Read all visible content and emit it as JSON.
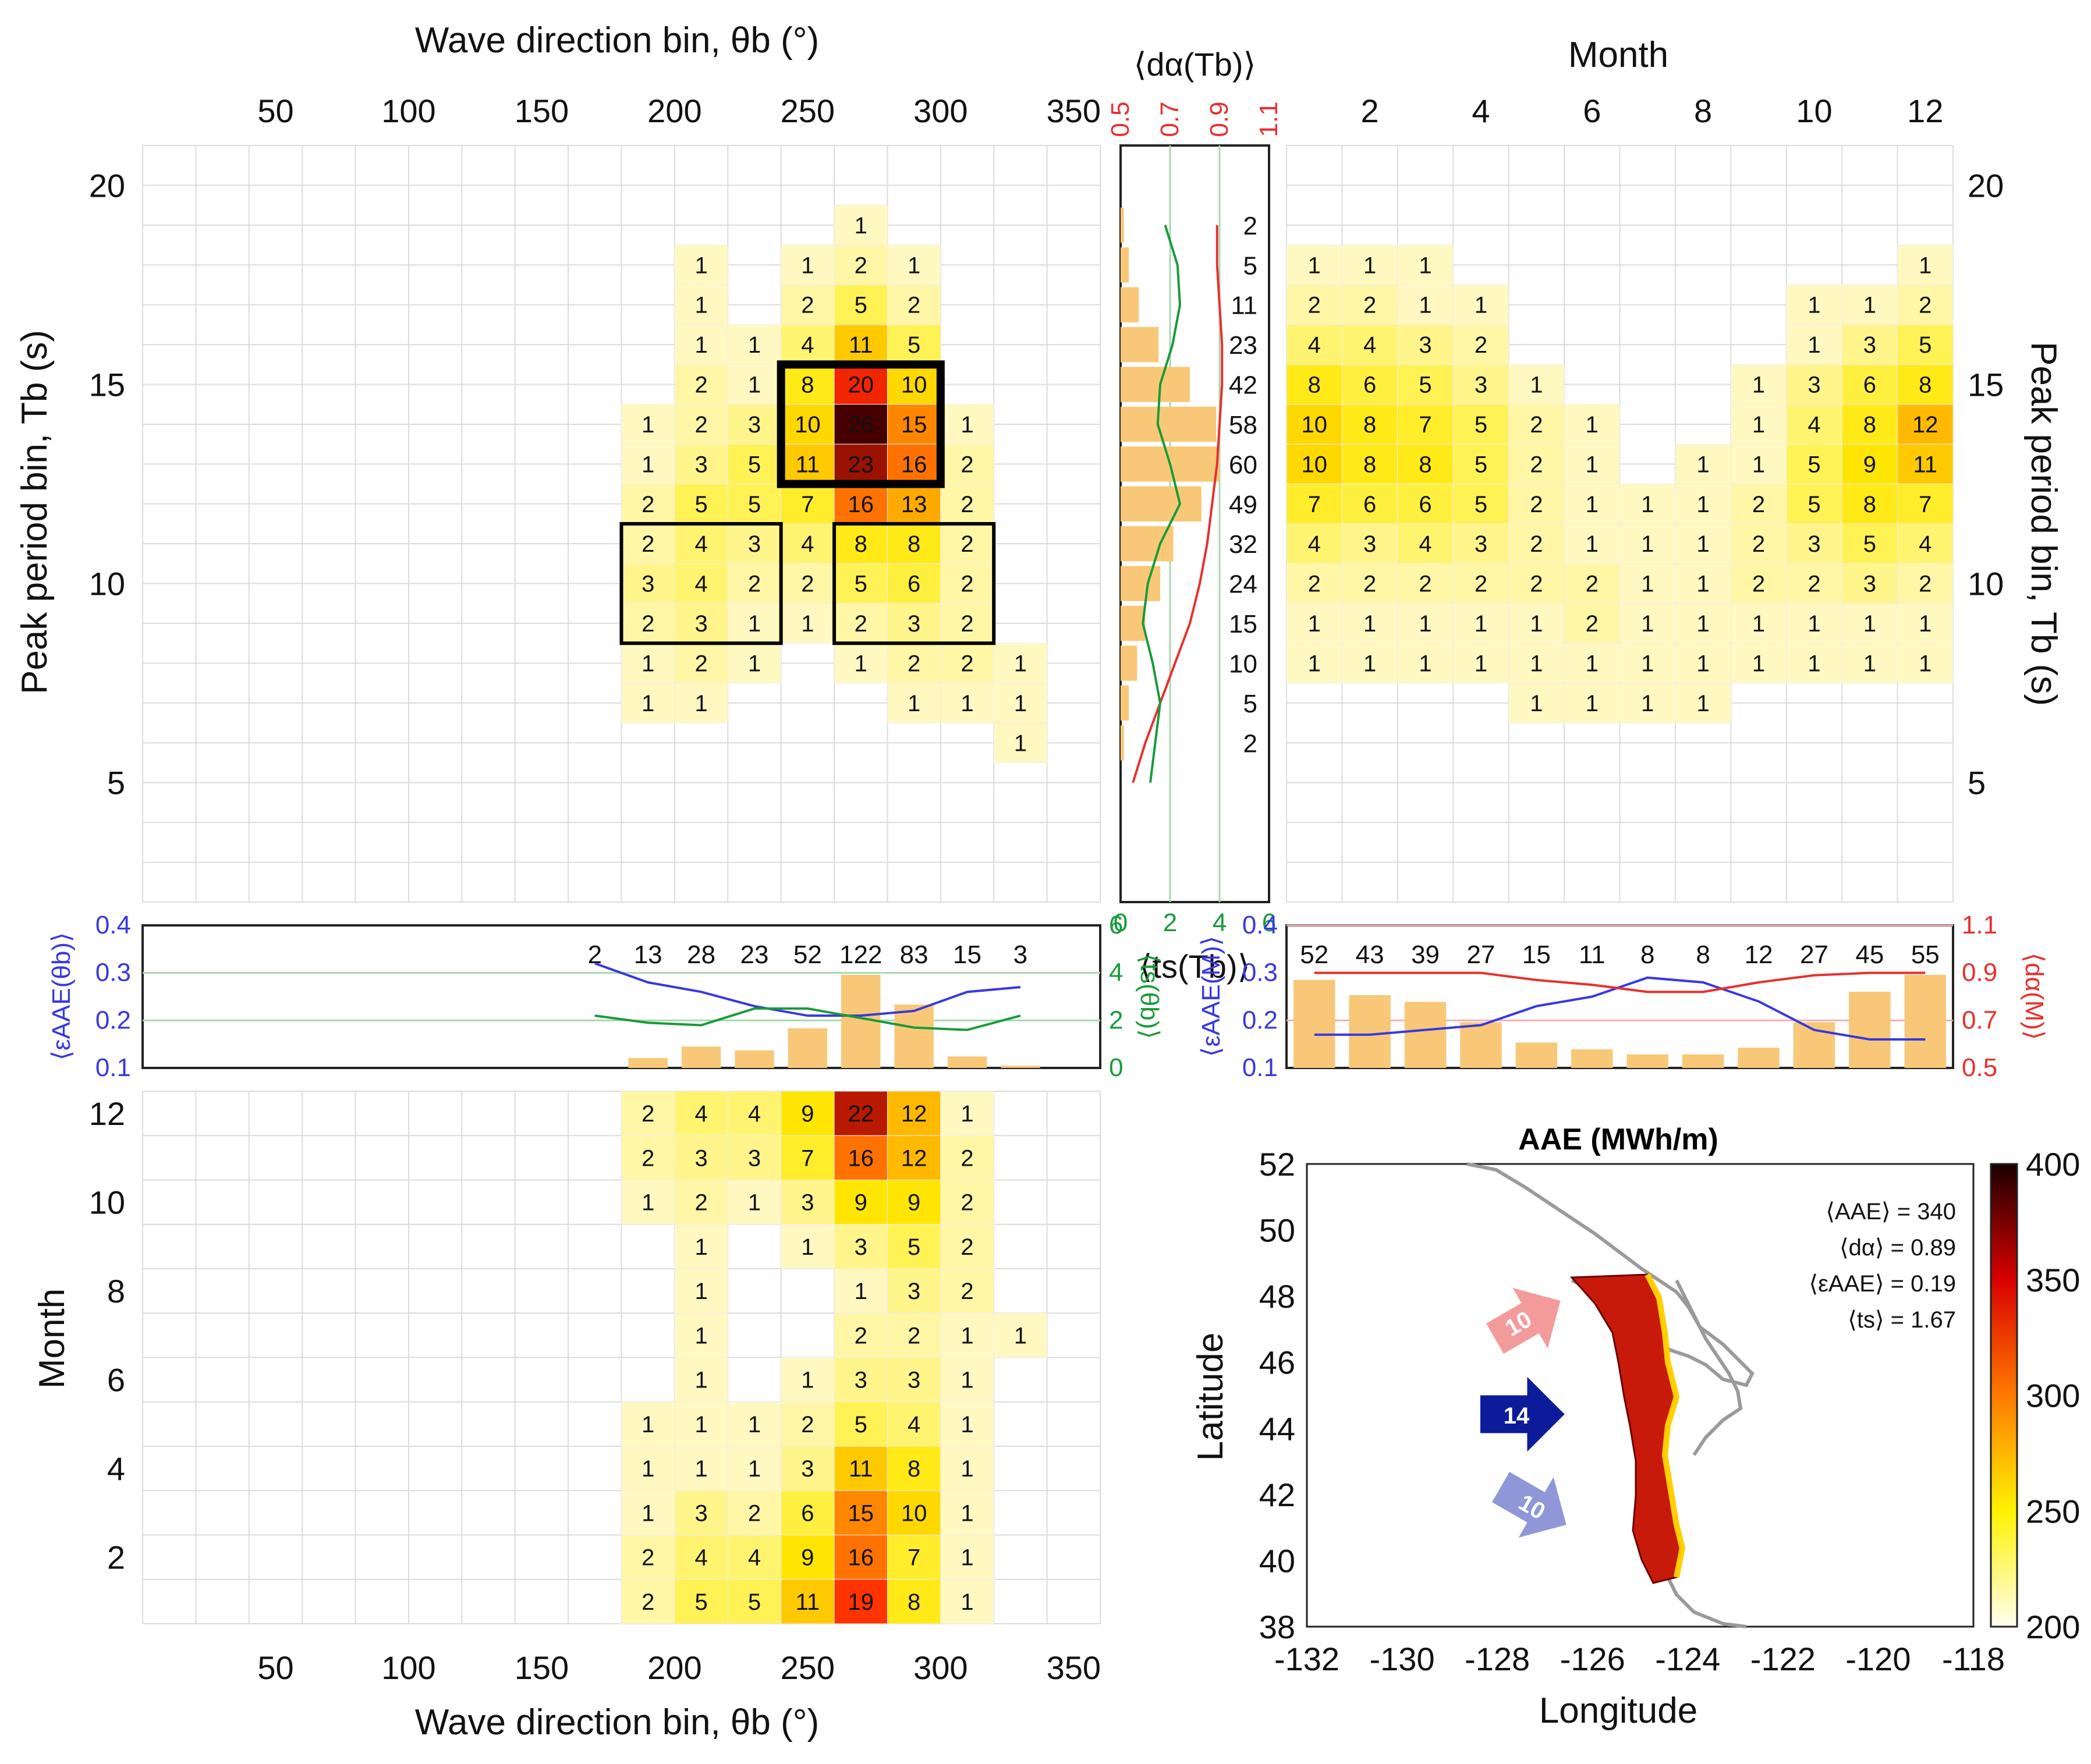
{
  "colors": {
    "low": "#fffbe6",
    "mid": "#fff200",
    "high": "#ff2a00",
    "max": "#3c0000",
    "accent_red": "#e8302f",
    "accent_green": "#1a9a3a",
    "accent_blue": "#3838e0",
    "bar": "#f8c878",
    "arrow_north": "#f39b9b",
    "arrow_mid": "#0b1b9a",
    "arrow_south": "#8f97d8"
  },
  "labels": {
    "top_x_title": "Wave direction bin, θb (°)",
    "bottom_x_title": "Wave direction bin, θb (°)",
    "top_left_y_title": "Peak period bin,  Tb (s)",
    "right_y_title": "Peak period bin,  Tb (s)",
    "month_x_title": "Month",
    "month_y_title": "Month",
    "dir_ticks": [
      "50",
      "100",
      "150",
      "200",
      "250",
      "300",
      "350"
    ],
    "tb_ticks": [
      "5",
      "10",
      "15",
      "20"
    ],
    "month_ticks": [
      "2",
      "4",
      "6",
      "8",
      "10",
      "12"
    ],
    "bottom_month_ticks": [
      "2",
      "4",
      "6",
      "8",
      "10",
      "12"
    ],
    "da_tb_title": "⟨dα(Tb)⟩",
    "ts_tb_title": "⟨ts(Tb)⟩",
    "da_ticks": [
      "0.5",
      "0.7",
      "0.9",
      "1.1"
    ],
    "ts_ticks": [
      "0",
      "2",
      "4",
      "6"
    ],
    "eaae_theta_title": "⟨εAAE(θb)⟩",
    "ts_theta_title": "⟨ts(θb)⟩",
    "eaae_m_title": "⟨εAAE(M)⟩",
    "da_m_title": "⟨dα(M)⟩",
    "eaae_ticks": [
      "0.1",
      "0.2",
      "0.3",
      "0.4"
    ],
    "ts_theta_ticks": [
      "0",
      "2",
      "4",
      "6"
    ],
    "da_m_ticks": [
      "0.5",
      "0.7",
      "0.9",
      "1.1"
    ]
  },
  "map": {
    "title": "AAE (MWh/m)",
    "xlabel": "Longitude",
    "ylabel": "Latitude",
    "x_ticks": [
      "-132",
      "-130",
      "-128",
      "-126",
      "-124",
      "-122",
      "-120",
      "-118"
    ],
    "y_ticks": [
      "38",
      "40",
      "42",
      "44",
      "46",
      "48",
      "50",
      "52"
    ],
    "colorbar_ticks": [
      "200",
      "250",
      "300",
      "350",
      "400"
    ],
    "stats": [
      "⟨AAE⟩ = 340",
      "⟨dα⟩ = 0.89",
      "⟨εAAE⟩ = 0.19",
      "⟨ts⟩ = 1.67"
    ],
    "arrows": [
      "10",
      "14",
      "10"
    ]
  },
  "chart_data": [
    {
      "type": "heatmap",
      "name": "direction-period",
      "xlabel": "Wave direction bin, θb (°)",
      "ylabel": "Peak period bin, Tb (s)",
      "x_range": [
        0,
        360
      ],
      "y_range": [
        2,
        21
      ],
      "bin_width_deg": 20,
      "cells": [
        {
          "x": 270,
          "y": 19,
          "v": 1
        },
        {
          "x": 210,
          "y": 18,
          "v": 1
        },
        {
          "x": 250,
          "y": 18,
          "v": 1
        },
        {
          "x": 270,
          "y": 18,
          "v": 2
        },
        {
          "x": 290,
          "y": 18,
          "v": 1
        },
        {
          "x": 210,
          "y": 17,
          "v": 1
        },
        {
          "x": 250,
          "y": 17,
          "v": 2
        },
        {
          "x": 270,
          "y": 17,
          "v": 5
        },
        {
          "x": 290,
          "y": 17,
          "v": 2
        },
        {
          "x": 210,
          "y": 16,
          "v": 1
        },
        {
          "x": 230,
          "y": 16,
          "v": 1
        },
        {
          "x": 250,
          "y": 16,
          "v": 4
        },
        {
          "x": 270,
          "y": 16,
          "v": 11
        },
        {
          "x": 290,
          "y": 16,
          "v": 5
        },
        {
          "x": 210,
          "y": 15,
          "v": 2
        },
        {
          "x": 230,
          "y": 15,
          "v": 1
        },
        {
          "x": 250,
          "y": 15,
          "v": 8
        },
        {
          "x": 270,
          "y": 15,
          "v": 20
        },
        {
          "x": 290,
          "y": 15,
          "v": 10
        },
        {
          "x": 190,
          "y": 14,
          "v": 1
        },
        {
          "x": 210,
          "y": 14,
          "v": 2
        },
        {
          "x": 230,
          "y": 14,
          "v": 3
        },
        {
          "x": 250,
          "y": 14,
          "v": 10
        },
        {
          "x": 270,
          "y": 14,
          "v": 26
        },
        {
          "x": 290,
          "y": 14,
          "v": 15
        },
        {
          "x": 310,
          "y": 14,
          "v": 1
        },
        {
          "x": 190,
          "y": 13,
          "v": 1
        },
        {
          "x": 210,
          "y": 13,
          "v": 3
        },
        {
          "x": 230,
          "y": 13,
          "v": 5
        },
        {
          "x": 250,
          "y": 13,
          "v": 11
        },
        {
          "x": 270,
          "y": 13,
          "v": 23
        },
        {
          "x": 290,
          "y": 13,
          "v": 16
        },
        {
          "x": 310,
          "y": 13,
          "v": 2
        },
        {
          "x": 190,
          "y": 12,
          "v": 2
        },
        {
          "x": 210,
          "y": 12,
          "v": 5
        },
        {
          "x": 230,
          "y": 12,
          "v": 5
        },
        {
          "x": 250,
          "y": 12,
          "v": 7
        },
        {
          "x": 270,
          "y": 12,
          "v": 16
        },
        {
          "x": 290,
          "y": 12,
          "v": 13
        },
        {
          "x": 310,
          "y": 12,
          "v": 2
        },
        {
          "x": 190,
          "y": 11,
          "v": 2
        },
        {
          "x": 210,
          "y": 11,
          "v": 4
        },
        {
          "x": 230,
          "y": 11,
          "v": 3
        },
        {
          "x": 250,
          "y": 11,
          "v": 4
        },
        {
          "x": 270,
          "y": 11,
          "v": 8
        },
        {
          "x": 290,
          "y": 11,
          "v": 8
        },
        {
          "x": 310,
          "y": 11,
          "v": 2
        },
        {
          "x": 190,
          "y": 10,
          "v": 3
        },
        {
          "x": 210,
          "y": 10,
          "v": 4
        },
        {
          "x": 230,
          "y": 10,
          "v": 2
        },
        {
          "x": 250,
          "y": 10,
          "v": 2
        },
        {
          "x": 270,
          "y": 10,
          "v": 5
        },
        {
          "x": 290,
          "y": 10,
          "v": 6
        },
        {
          "x": 310,
          "y": 10,
          "v": 2
        },
        {
          "x": 190,
          "y": 9,
          "v": 2
        },
        {
          "x": 210,
          "y": 9,
          "v": 3
        },
        {
          "x": 230,
          "y": 9,
          "v": 1
        },
        {
          "x": 250,
          "y": 9,
          "v": 1
        },
        {
          "x": 270,
          "y": 9,
          "v": 2
        },
        {
          "x": 290,
          "y": 9,
          "v": 3
        },
        {
          "x": 310,
          "y": 9,
          "v": 2
        },
        {
          "x": 190,
          "y": 8,
          "v": 1
        },
        {
          "x": 210,
          "y": 8,
          "v": 2
        },
        {
          "x": 230,
          "y": 8,
          "v": 1
        },
        {
          "x": 270,
          "y": 8,
          "v": 1
        },
        {
          "x": 290,
          "y": 8,
          "v": 2
        },
        {
          "x": 310,
          "y": 8,
          "v": 2
        },
        {
          "x": 330,
          "y": 8,
          "v": 1
        },
        {
          "x": 190,
          "y": 7,
          "v": 1
        },
        {
          "x": 210,
          "y": 7,
          "v": 1
        },
        {
          "x": 290,
          "y": 7,
          "v": 1
        },
        {
          "x": 310,
          "y": 7,
          "v": 1
        },
        {
          "x": 330,
          "y": 7,
          "v": 1
        },
        {
          "x": 330,
          "y": 6,
          "v": 1
        }
      ],
      "highlight_boxes": [
        {
          "x": [
            240,
            300
          ],
          "y": [
            13,
            15
          ],
          "weight": "bold"
        },
        {
          "x": [
            180,
            240
          ],
          "y": [
            9,
            11
          ],
          "weight": "normal"
        },
        {
          "x": [
            260,
            320
          ],
          "y": [
            9,
            11
          ],
          "weight": "normal"
        }
      ]
    },
    {
      "type": "heatmap",
      "name": "month-period",
      "xlabel": "Month",
      "ylabel": "Peak period bin, Tb (s)",
      "x_range": [
        0.5,
        12.5
      ],
      "y_range": [
        2,
        21
      ],
      "rows": [
        {
          "y": 18,
          "values": [
            1,
            1,
            1,
            0,
            0,
            0,
            0,
            0,
            0,
            0,
            0,
            1
          ]
        },
        {
          "y": 17,
          "values": [
            2,
            2,
            1,
            1,
            0,
            0,
            0,
            0,
            0,
            1,
            1,
            2
          ]
        },
        {
          "y": 16,
          "values": [
            4,
            4,
            3,
            2,
            0,
            0,
            0,
            0,
            0,
            1,
            3,
            5
          ]
        },
        {
          "y": 15,
          "values": [
            8,
            6,
            5,
            3,
            1,
            0,
            0,
            0,
            1,
            3,
            6,
            8
          ]
        },
        {
          "y": 14,
          "values": [
            10,
            8,
            7,
            5,
            2,
            1,
            0,
            0,
            1,
            4,
            8,
            12
          ]
        },
        {
          "y": 13,
          "values": [
            10,
            8,
            8,
            5,
            2,
            1,
            0,
            1,
            1,
            5,
            9,
            11
          ]
        },
        {
          "y": 12,
          "values": [
            7,
            6,
            6,
            5,
            2,
            1,
            1,
            1,
            2,
            5,
            8,
            7
          ]
        },
        {
          "y": 11,
          "values": [
            4,
            3,
            4,
            3,
            2,
            1,
            1,
            1,
            2,
            3,
            5,
            4
          ]
        },
        {
          "y": 10,
          "values": [
            2,
            2,
            2,
            2,
            2,
            2,
            1,
            1,
            2,
            2,
            3,
            2
          ]
        },
        {
          "y": 9,
          "values": [
            1,
            1,
            1,
            1,
            1,
            2,
            1,
            1,
            1,
            1,
            1,
            1
          ]
        },
        {
          "y": 8,
          "values": [
            1,
            1,
            1,
            1,
            1,
            1,
            1,
            1,
            1,
            1,
            1,
            1
          ]
        },
        {
          "y": 7,
          "values": [
            0,
            0,
            0,
            0,
            1,
            1,
            1,
            1,
            0,
            0,
            0,
            0
          ]
        }
      ]
    },
    {
      "type": "heatmap",
      "name": "direction-month",
      "xlabel": "Wave direction bin, θb (°)",
      "ylabel": "Month",
      "x_range": [
        0,
        360
      ],
      "y_range": [
        0.5,
        12.5
      ],
      "directions": [
        190,
        210,
        230,
        250,
        270,
        290,
        310,
        330
      ],
      "rows": [
        {
          "month": 12,
          "values": [
            2,
            4,
            4,
            9,
            22,
            12,
            1,
            0
          ]
        },
        {
          "month": 11,
          "values": [
            2,
            3,
            3,
            7,
            16,
            12,
            2,
            0
          ]
        },
        {
          "month": 10,
          "values": [
            1,
            2,
            1,
            3,
            9,
            9,
            2,
            0
          ]
        },
        {
          "month": 9,
          "values": [
            0,
            1,
            0,
            1,
            3,
            5,
            2,
            0
          ]
        },
        {
          "month": 8,
          "values": [
            0,
            1,
            0,
            0,
            1,
            3,
            2,
            0
          ]
        },
        {
          "month": 7,
          "values": [
            0,
            1,
            0,
            0,
            2,
            2,
            1,
            1
          ]
        },
        {
          "month": 6,
          "values": [
            0,
            1,
            0,
            1,
            3,
            3,
            1,
            0
          ]
        },
        {
          "month": 5,
          "values": [
            1,
            1,
            1,
            2,
            5,
            4,
            1,
            0
          ]
        },
        {
          "month": 4,
          "values": [
            1,
            1,
            1,
            3,
            11,
            8,
            1,
            0
          ]
        },
        {
          "month": 3,
          "values": [
            1,
            3,
            2,
            6,
            15,
            10,
            1,
            0
          ]
        },
        {
          "month": 2,
          "values": [
            2,
            4,
            4,
            9,
            16,
            7,
            1,
            0
          ]
        },
        {
          "month": 1,
          "values": [
            2,
            5,
            5,
            11,
            19,
            8,
            1,
            0
          ]
        }
      ]
    },
    {
      "type": "bar",
      "name": "period-marginal",
      "tb_bins": [
        19,
        18,
        17,
        16,
        15,
        14,
        13,
        12,
        11,
        10,
        9,
        8,
        7,
        6
      ],
      "counts": [
        2,
        5,
        11,
        23,
        42,
        58,
        60,
        49,
        32,
        24,
        15,
        10,
        5,
        2
      ],
      "da_curve": {
        "tb": [
          5,
          6,
          7,
          8,
          9,
          10,
          11,
          12,
          13,
          14,
          15,
          16,
          17,
          18,
          19
        ],
        "values": [
          0.55,
          0.6,
          0.66,
          0.72,
          0.78,
          0.82,
          0.85,
          0.87,
          0.89,
          0.9,
          0.91,
          0.91,
          0.9,
          0.89,
          0.89
        ]
      },
      "ts_curve": {
        "tb": [
          5,
          6,
          7,
          8,
          9,
          10,
          11,
          12,
          13,
          14,
          15,
          16,
          17,
          18,
          19
        ],
        "values": [
          1.2,
          1.4,
          1.6,
          1.3,
          0.9,
          1.1,
          1.6,
          2.4,
          2.0,
          1.5,
          1.6,
          2.1,
          2.4,
          2.3,
          1.8
        ]
      },
      "da_range": [
        0.5,
        1.1
      ],
      "ts_range": [
        0,
        6
      ]
    },
    {
      "type": "bar",
      "name": "direction-marginal",
      "directions": [
        190,
        210,
        230,
        250,
        270,
        290,
        310,
        330
      ],
      "labels": [
        "2",
        "13",
        "28",
        "23",
        "52",
        "122",
        "83",
        "15",
        "3"
      ],
      "bar_dirs": [
        190,
        210,
        230,
        250,
        270,
        290,
        310,
        330
      ],
      "bar_counts": [
        13,
        28,
        23,
        52,
        122,
        83,
        15,
        3
      ],
      "label_dirs": [
        170,
        190,
        210,
        230,
        250,
        270,
        290,
        310,
        330
      ],
      "eaae": {
        "x": [
          170,
          190,
          210,
          230,
          250,
          270,
          290,
          310,
          330
        ],
        "values": [
          0.32,
          0.28,
          0.26,
          0.23,
          0.21,
          0.21,
          0.22,
          0.26,
          0.27
        ]
      },
      "ts": {
        "x": [
          170,
          190,
          210,
          230,
          250,
          270,
          290,
          310,
          330
        ],
        "values": [
          2.2,
          1.9,
          1.8,
          2.5,
          2.5,
          2.1,
          1.7,
          1.6,
          2.2
        ]
      },
      "eaae_range": [
        0.1,
        0.4
      ],
      "ts_range": [
        0,
        6
      ]
    },
    {
      "type": "bar",
      "name": "month-marginal",
      "months": [
        1,
        2,
        3,
        4,
        5,
        6,
        7,
        8,
        9,
        10,
        11,
        12
      ],
      "counts": [
        52,
        43,
        39,
        27,
        15,
        11,
        8,
        8,
        12,
        27,
        45,
        55
      ],
      "eaae": [
        0.17,
        0.17,
        0.18,
        0.19,
        0.23,
        0.25,
        0.29,
        0.28,
        0.24,
        0.18,
        0.16,
        0.16
      ],
      "da": [
        0.9,
        0.9,
        0.9,
        0.9,
        0.87,
        0.85,
        0.82,
        0.82,
        0.86,
        0.89,
        0.9,
        0.9
      ],
      "eaae_range": [
        0.1,
        0.4
      ],
      "da_range": [
        0.5,
        1.1
      ]
    }
  ]
}
